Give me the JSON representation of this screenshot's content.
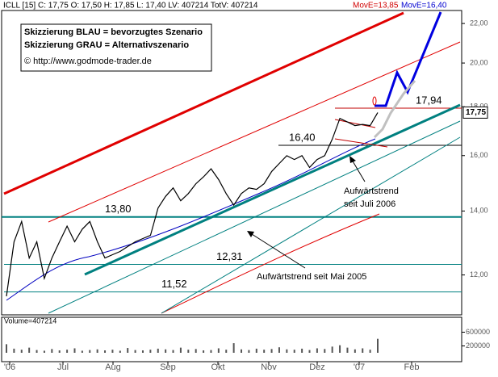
{
  "chart_data": {
    "type": "line",
    "header": {
      "symbol": "ICLL [15] C: 17,75 O: 17,50 H: 17,85 L: 17,40 LV: 407214 TotV: 407214",
      "mov_red": "MovE=13,85",
      "mov_blue": "MovE=16,40"
    },
    "legend_lines": [
      "Skizzierung BLAU = bevorzugtes Szenario",
      "Skizzierung GRAU = Alternativszenario",
      "© http://www.godmode-trader.de"
    ],
    "log_scale": true,
    "ylim": [
      10.9,
      22.7
    ],
    "yticks": [
      {
        "value": 22,
        "label": "22,00"
      },
      {
        "value": 20,
        "label": "20,00"
      },
      {
        "value": 18,
        "label": "18,00"
      },
      {
        "value": 16,
        "label": "16,00"
      },
      {
        "value": 14,
        "label": "14,00"
      },
      {
        "value": 12,
        "label": "12,00"
      }
    ],
    "x_labels": [
      "'06",
      "Jul",
      "Aug",
      "Sep",
      "Okt",
      "Nov",
      "Dez",
      "'07",
      "Feb"
    ],
    "series": [
      {
        "name": "ICLL",
        "color": "#000000",
        "values": [
          11.4,
          13.0,
          13.65,
          12.5,
          13.0,
          11.9,
          12.5,
          13.0,
          13.5,
          13.0,
          13.4,
          13.65,
          13.0,
          12.5,
          12.6,
          12.7,
          12.85,
          13.0,
          13.1,
          13.2,
          14.1,
          14.5,
          14.8,
          14.35,
          14.6,
          14.95,
          15.2,
          15.5,
          15.1,
          14.6,
          14.2,
          14.6,
          14.8,
          14.75,
          14.95,
          15.4,
          15.7,
          16.0,
          15.85,
          16.0,
          15.55,
          15.85,
          16.0,
          16.65,
          17.5,
          17.35,
          17.2,
          17.25,
          17.2,
          17.75
        ]
      }
    ],
    "last_price_label": "17,75",
    "levels": [
      {
        "value": 17.94,
        "label": "17,94"
      },
      {
        "value": 16.4,
        "label": "16,40"
      },
      {
        "value": 13.8,
        "label": "13,80"
      },
      {
        "value": 12.31,
        "label": "12,31"
      },
      {
        "value": 11.52,
        "label": "11,52"
      }
    ],
    "annotations": [
      "Aufwärtstrend",
      "seit Juli 2006",
      "Aufwärtstrend seit Mai 2005"
    ],
    "volume": {
      "title": "Volume=407214",
      "ylim": [
        0,
        800000
      ],
      "yticks": [
        600000,
        200000
      ],
      "values": [
        250000,
        120000,
        90000,
        150000,
        80000,
        60000,
        110000,
        70000,
        90000,
        130000,
        60000,
        80000,
        100000,
        70000,
        90000,
        60000,
        140000,
        80000,
        70000,
        90000,
        120000,
        100000,
        80000,
        150000,
        90000,
        110000,
        70000,
        80000,
        130000,
        90000,
        280000,
        100000,
        80000,
        120000,
        90000,
        110000,
        160000,
        100000,
        90000,
        120000,
        80000,
        130000,
        110000,
        180000,
        220000,
        150000,
        100000,
        130000,
        90000,
        407214
      ]
    }
  }
}
